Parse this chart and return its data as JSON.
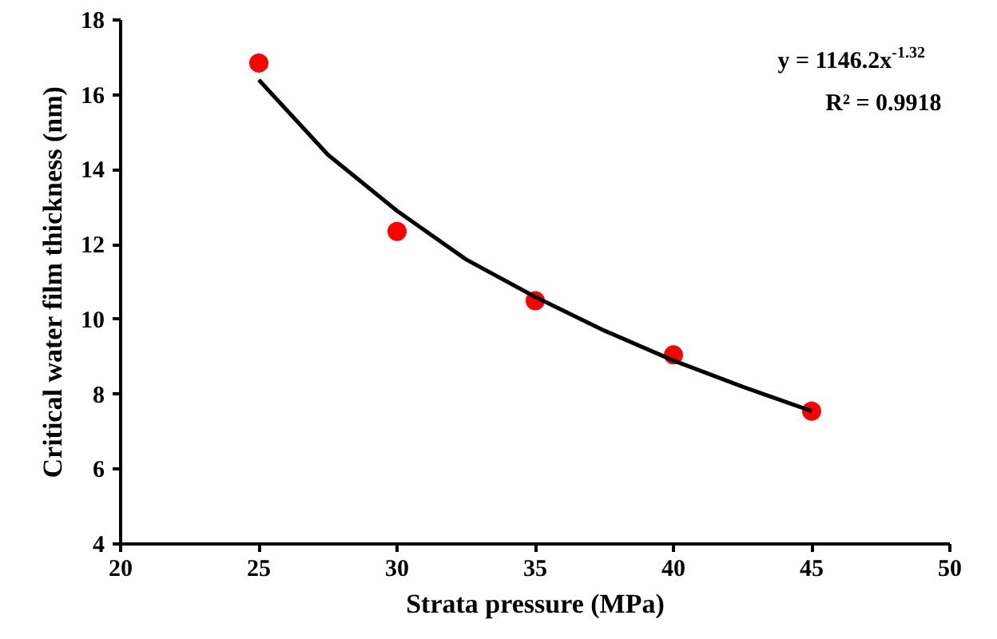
{
  "chart_data": {
    "type": "scatter",
    "xlabel": "Strata pressure (MPa)",
    "ylabel": "Critical water film thickness (nm)",
    "x": [
      25,
      30,
      35,
      40,
      45
    ],
    "series": [
      {
        "color": "#ff0000",
        "marker": "circle",
        "values": [
          16.85,
          12.35,
          10.5,
          9.05,
          7.55
        ]
      },
      {
        "type": "line",
        "color": "#000000",
        "line_style": "solid",
        "x": [
          25,
          27.5,
          30,
          32.5,
          35,
          37.5,
          40,
          42.5,
          45
        ],
        "values": [
          16.4,
          14.4,
          12.9,
          11.6,
          10.6,
          9.7,
          8.9,
          8.2,
          7.55
        ]
      }
    ],
    "xlim": [
      20,
      50
    ],
    "ylim": [
      4,
      18
    ],
    "xticks": [
      20,
      25,
      30,
      35,
      40,
      45,
      50
    ],
    "yticks": [
      4,
      6,
      8,
      10,
      12,
      14,
      16,
      18
    ],
    "grid": false,
    "annotations": [
      "y = 1146.2x$^{-1.32}$",
      "R² = 0.9918"
    ]
  }
}
